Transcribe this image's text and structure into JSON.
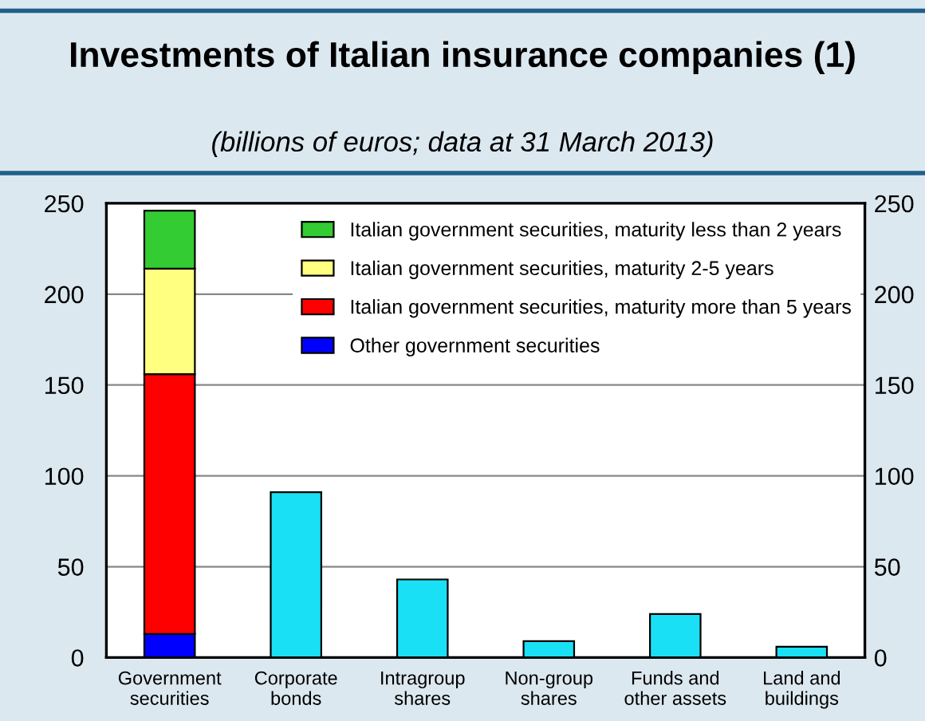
{
  "chart_data": {
    "type": "bar",
    "title": "Investments of Italian insurance companies (1)",
    "subtitle": "(billions of euros; data at 31 March 2013)",
    "categories": [
      "Government securities",
      "Corporate bonds",
      "Intragroup shares",
      "Non-group shares",
      "Funds and other assets",
      "Land and buildings"
    ],
    "stacked": true,
    "series": [
      {
        "name": "Other government securities",
        "color": "#0000ff",
        "values": [
          13,
          null,
          null,
          null,
          null,
          null
        ]
      },
      {
        "name": "Italian government securities, maturity more than 5 years",
        "color": "#ff0000",
        "values": [
          143,
          null,
          null,
          null,
          null,
          null
        ]
      },
      {
        "name": "Italian government securities, maturity 2-5 years",
        "color": "#ffff80",
        "values": [
          58,
          null,
          null,
          null,
          null,
          null
        ]
      },
      {
        "name": "Italian government securities, maturity less than 2 years",
        "color": "#33cc33",
        "values": [
          32,
          null,
          null,
          null,
          null,
          null
        ]
      },
      {
        "color": "#1ae0f5",
        "values": [
          null,
          91,
          43,
          9,
          24,
          6
        ]
      }
    ],
    "ylim": [
      0,
      250
    ],
    "yticks": [
      0,
      50,
      100,
      150,
      200,
      250
    ],
    "y2lim": [
      0,
      250
    ],
    "y2ticks": [
      0,
      50,
      100,
      150,
      200,
      250
    ],
    "grid": "y",
    "legend": "top"
  }
}
